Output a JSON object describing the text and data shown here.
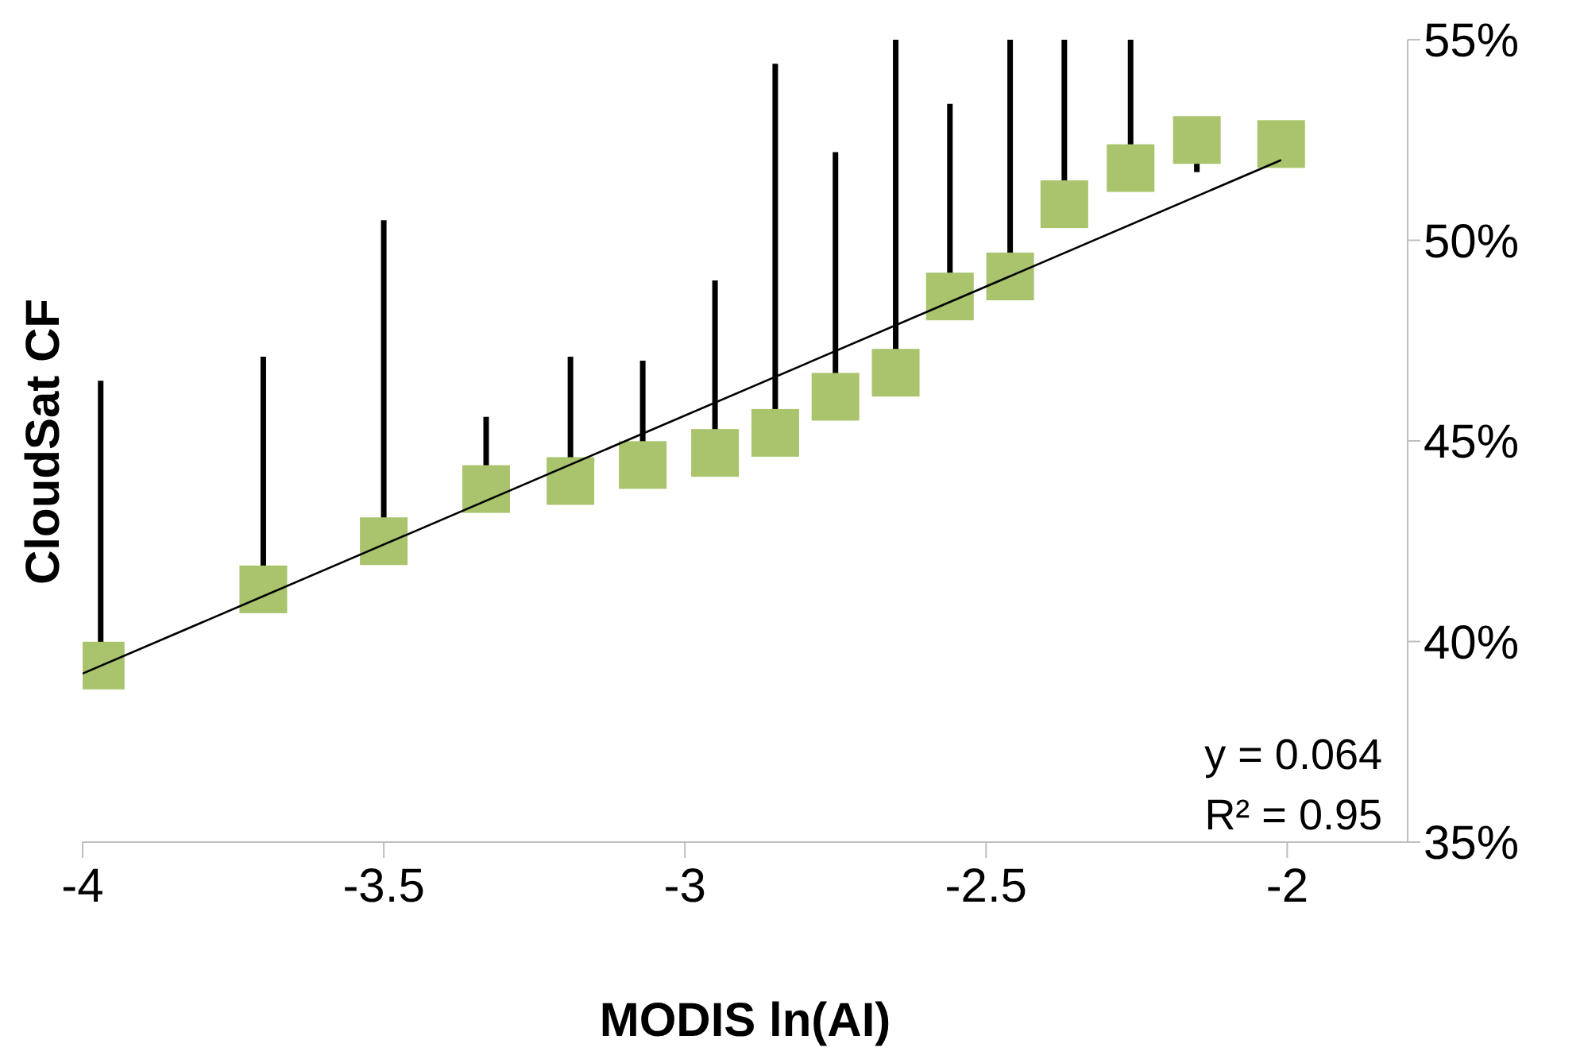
{
  "chart_data": {
    "type": "scatter",
    "xlabel": "MODIS ln(AI)",
    "ylabel": "CloudSat CF",
    "xlim": [
      -4,
      -1.8
    ],
    "xticks": [
      -4,
      -3.5,
      -3,
      -2.5,
      -2
    ],
    "ylim": [
      35,
      55
    ],
    "yticks": [
      {
        "value": 35,
        "label": "35%"
      },
      {
        "value": 40,
        "label": "40%"
      },
      {
        "value": 45,
        "label": "45%"
      },
      {
        "value": 50,
        "label": "50%"
      },
      {
        "value": 55,
        "label": "55%"
      }
    ],
    "marker": "square",
    "series": [
      {
        "color": "#a9c46c",
        "x": [
          -3.97,
          -3.7,
          -3.5,
          -3.33,
          -3.19,
          -3.07,
          -2.95,
          -2.85,
          -2.75,
          -2.65,
          -2.56,
          -2.46,
          -2.37,
          -2.26,
          -2.15,
          -2.01
        ],
        "values": [
          39.4,
          41.3,
          42.5,
          43.8,
          44.0,
          44.4,
          44.7,
          45.2,
          46.1,
          46.7,
          48.6,
          49.1,
          50.9,
          51.8,
          52.5,
          52.4
        ],
        "errors": [
          [
            39.4,
            46.5
          ],
          [
            41.3,
            47.1
          ],
          [
            42.5,
            50.5
          ],
          [
            43.8,
            45.6
          ],
          [
            44.0,
            47.1
          ],
          [
            44.4,
            47.0
          ],
          [
            44.7,
            49.0
          ],
          [
            45.2,
            54.4
          ],
          [
            46.1,
            52.2
          ],
          [
            46.7,
            55
          ],
          [
            48.6,
            53.4
          ],
          [
            49.1,
            55
          ],
          [
            50.9,
            55
          ],
          [
            51.8,
            55
          ],
          [
            51.7,
            52.5
          ],
          null
        ]
      },
      {
        "type": "line",
        "marker": "none",
        "color": "#000000",
        "line_style": "solid",
        "x": [
          -4,
          -2.01
        ],
        "values": [
          39.2,
          52.0
        ]
      }
    ],
    "annotations": [
      "y = 0.064",
      "R² = 0.95"
    ]
  }
}
